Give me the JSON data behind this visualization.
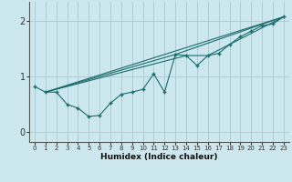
{
  "xlabel": "Humidex (Indice chaleur)",
  "bg_color": "#cce8ee",
  "line_color": "#1a6b6b",
  "grid_color": "#aecdd4",
  "xlim": [
    -0.5,
    23.5
  ],
  "ylim": [
    -0.18,
    2.35
  ],
  "yticks": [
    0,
    1,
    2
  ],
  "xticks": [
    0,
    1,
    2,
    3,
    4,
    5,
    6,
    7,
    8,
    9,
    10,
    11,
    12,
    13,
    14,
    15,
    16,
    17,
    18,
    19,
    20,
    21,
    22,
    23
  ],
  "series_x": [
    0,
    1,
    2,
    3,
    4,
    5,
    6,
    7,
    8,
    9,
    10,
    11,
    12,
    13,
    14,
    15,
    16,
    17,
    18,
    19,
    20,
    21,
    22,
    23
  ],
  "series_y": [
    0.82,
    0.72,
    0.72,
    0.5,
    0.43,
    0.28,
    0.3,
    0.52,
    0.68,
    0.72,
    0.77,
    1.05,
    0.72,
    1.4,
    1.38,
    1.2,
    1.38,
    1.42,
    1.58,
    1.72,
    1.82,
    1.92,
    1.95,
    2.08
  ],
  "line1_x": [
    1,
    23
  ],
  "line1_y": [
    0.72,
    2.08
  ],
  "line2_x": [
    1,
    13,
    23
  ],
  "line2_y": [
    0.72,
    1.4,
    2.08
  ],
  "line3_x": [
    1,
    14,
    16,
    23
  ],
  "line3_y": [
    0.72,
    1.38,
    1.38,
    2.08
  ]
}
